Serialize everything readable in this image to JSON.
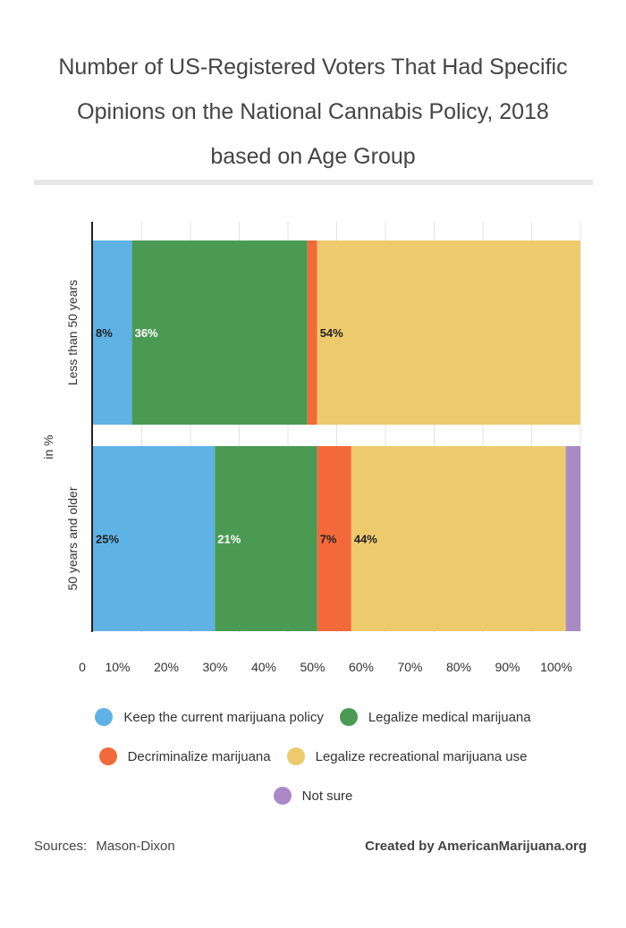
{
  "chart_data": {
    "type": "bar",
    "orientation": "horizontal",
    "stacked": true,
    "title_lines": [
      "Number of US-Registered Voters That Had Specific",
      "Opinions on the National Cannabis Policy, 2018",
      "based on Age Group"
    ],
    "ylabel": "in %",
    "categories": [
      "Less than 50 years",
      "50 years and older"
    ],
    "series": [
      {
        "name": "Keep the current marijuana policy",
        "color": "#5fb3e4",
        "values": [
          8,
          25
        ],
        "labels": [
          "8%",
          "25%"
        ]
      },
      {
        "name": "Legalize medical marijuana",
        "color": "#4a9a54",
        "values": [
          36,
          21
        ],
        "labels": [
          "36%",
          "21%"
        ]
      },
      {
        "name": "Decriminalize marijuana",
        "color": "#f4693a",
        "values": [
          2,
          7
        ],
        "labels": [
          "",
          "7%"
        ]
      },
      {
        "name": "Legalize recreational marijuana use",
        "color": "#edcb6d",
        "values": [
          54,
          44
        ],
        "labels": [
          "54%",
          "44%"
        ]
      },
      {
        "name": "Not sure",
        "color": "#a98ac6",
        "values": [
          0,
          3
        ],
        "labels": [
          "",
          ""
        ]
      }
    ],
    "xlim": [
      0,
      100
    ],
    "xticks": [
      "0",
      "10%",
      "20%",
      "30%",
      "40%",
      "50%",
      "60%",
      "70%",
      "80%",
      "90%",
      "100%"
    ],
    "grid": true,
    "legend_position": "bottom"
  },
  "footer": {
    "sources_label": "Sources:",
    "sources_value": "Mason-Dixon",
    "credit": "Created by AmericanMarijuana.org"
  }
}
